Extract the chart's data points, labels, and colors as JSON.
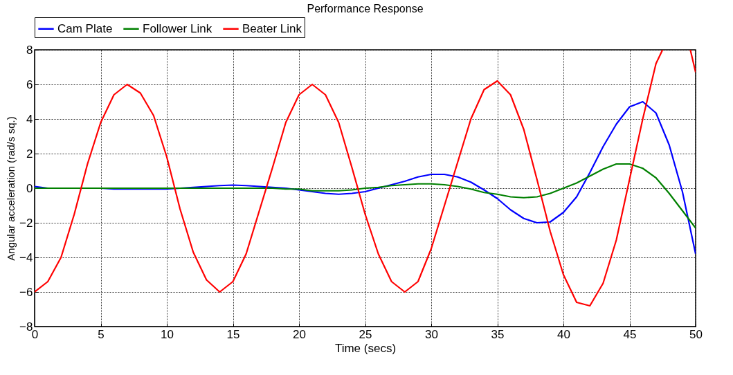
{
  "chart_data": {
    "type": "line",
    "title": "Performance Response",
    "xlabel": "Time (secs)",
    "ylabel": "Angular acceleration (rad/s sq.)",
    "x": [
      0,
      1,
      2,
      3,
      4,
      5,
      6,
      7,
      8,
      9,
      10,
      11,
      12,
      13,
      14,
      15,
      16,
      17,
      18,
      19,
      20,
      21,
      22,
      23,
      24,
      25,
      26,
      27,
      28,
      29,
      30,
      31,
      32,
      33,
      34,
      35,
      36,
      37,
      38,
      39,
      40,
      41,
      42,
      43,
      44,
      45,
      46,
      47,
      48,
      49,
      50
    ],
    "series": [
      {
        "name": "Cam Plate",
        "color": "#0000ff",
        "values": [
          0.1,
          0,
          0,
          0,
          0,
          0,
          -0.05,
          -0.05,
          -0.05,
          -0.05,
          -0.05,
          0,
          0.05,
          0.1,
          0.15,
          0.18,
          0.15,
          0.1,
          0.05,
          0,
          -0.1,
          -0.2,
          -0.3,
          -0.35,
          -0.3,
          -0.2,
          0,
          0.2,
          0.4,
          0.65,
          0.8,
          0.8,
          0.65,
          0.35,
          -0.1,
          -0.6,
          -1.25,
          -1.75,
          -2,
          -1.95,
          -1.4,
          -0.5,
          0.9,
          2.4,
          3.7,
          4.7,
          5,
          4.35,
          2.5,
          -0.2,
          -3.8
        ]
      },
      {
        "name": "Follower Link",
        "color": "#008000",
        "values": [
          0,
          0,
          0,
          0,
          0,
          0,
          0,
          0,
          0,
          0,
          0,
          0,
          0,
          0,
          0,
          0,
          0,
          0,
          0,
          -0.05,
          -0.05,
          -0.15,
          -0.15,
          -0.15,
          -0.1,
          0,
          0.05,
          0.15,
          0.2,
          0.25,
          0.25,
          0.2,
          0.1,
          -0.05,
          -0.25,
          -0.35,
          -0.5,
          -0.55,
          -0.5,
          -0.3,
          0,
          0.3,
          0.7,
          1.1,
          1.4,
          1.4,
          1.15,
          0.6,
          -0.3,
          -1.3,
          -2.3
        ]
      },
      {
        "name": "Beater Link",
        "color": "#ff0000",
        "x": [
          0,
          1,
          2,
          3,
          4,
          5,
          6,
          7,
          8,
          9,
          10,
          11,
          12,
          13,
          14,
          15,
          16,
          17,
          18,
          19,
          20,
          21,
          22,
          23,
          24,
          25,
          26,
          27,
          28,
          29,
          30,
          31,
          32,
          33,
          34,
          35,
          36,
          37,
          38,
          39,
          40,
          41,
          42,
          43,
          44,
          45,
          46,
          47,
          47.5,
          48,
          49.6,
          50
        ],
        "values": [
          -6,
          -5.4,
          -4,
          -1.5,
          1.4,
          3.8,
          5.4,
          6,
          5.5,
          4.2,
          1.8,
          -1.2,
          -3.7,
          -5.3,
          -6,
          -5.4,
          -3.8,
          -1.3,
          1.2,
          3.8,
          5.4,
          6,
          5.4,
          3.8,
          1.2,
          -1.5,
          -3.8,
          -5.4,
          -6,
          -5.4,
          -3.5,
          -1,
          1.5,
          4,
          5.7,
          6.2,
          5.4,
          3.4,
          0.5,
          -2.5,
          -5,
          -6.6,
          -6.8,
          -5.5,
          -3,
          0.5,
          4,
          7.2,
          8,
          null,
          8,
          6.7
        ]
      }
    ],
    "xlim": [
      0,
      50
    ],
    "xticks": [
      0,
      5,
      10,
      15,
      20,
      25,
      30,
      35,
      40,
      45,
      50
    ],
    "ylim": [
      -8,
      8
    ],
    "yticks": [
      -8,
      -6,
      -4,
      -2,
      0,
      2,
      4,
      6,
      8
    ],
    "grid": true,
    "legend": "top",
    "line_style": "solid",
    "marker": "none"
  }
}
